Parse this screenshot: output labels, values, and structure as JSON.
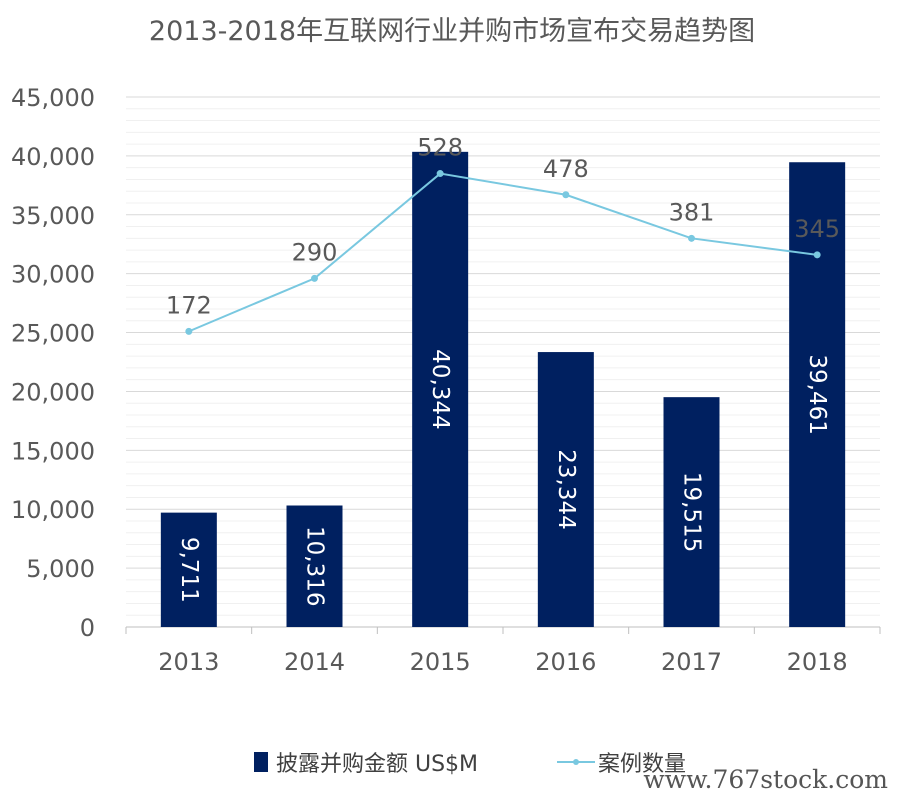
{
  "chart_data": {
    "type": "bar",
    "title": "2013-2018年互联网行业并购市场宣布交易趋势图",
    "categories": [
      "2013",
      "2014",
      "2015",
      "2016",
      "2017",
      "2018"
    ],
    "y_ticks": [
      "0",
      "5,000",
      "10,000",
      "15,000",
      "20,000",
      "25,000",
      "30,000",
      "35,000",
      "40,000",
      "45,000"
    ],
    "ylim": [
      0,
      45000
    ],
    "grid": true,
    "legend_position": "bottom",
    "series": [
      {
        "name": "披露并购金额 US$M",
        "type": "bar",
        "color": "#002060",
        "values": [
          9711,
          10316,
          40344,
          23344,
          19515,
          39461
        ],
        "labels": [
          "9,711",
          "10,316",
          "40,344",
          "23,344",
          "19,515",
          "39,461"
        ]
      },
      {
        "name": "案例数量",
        "type": "line",
        "color": "#79C8E0",
        "values": [
          172,
          290,
          528,
          478,
          381,
          345
        ],
        "labels": [
          "172",
          "290",
          "528",
          "478",
          "381",
          "345"
        ],
        "plotted_values": [
          25100,
          29600,
          38500,
          36700,
          33000,
          31600
        ]
      }
    ]
  },
  "watermark": "www.767stock.com"
}
